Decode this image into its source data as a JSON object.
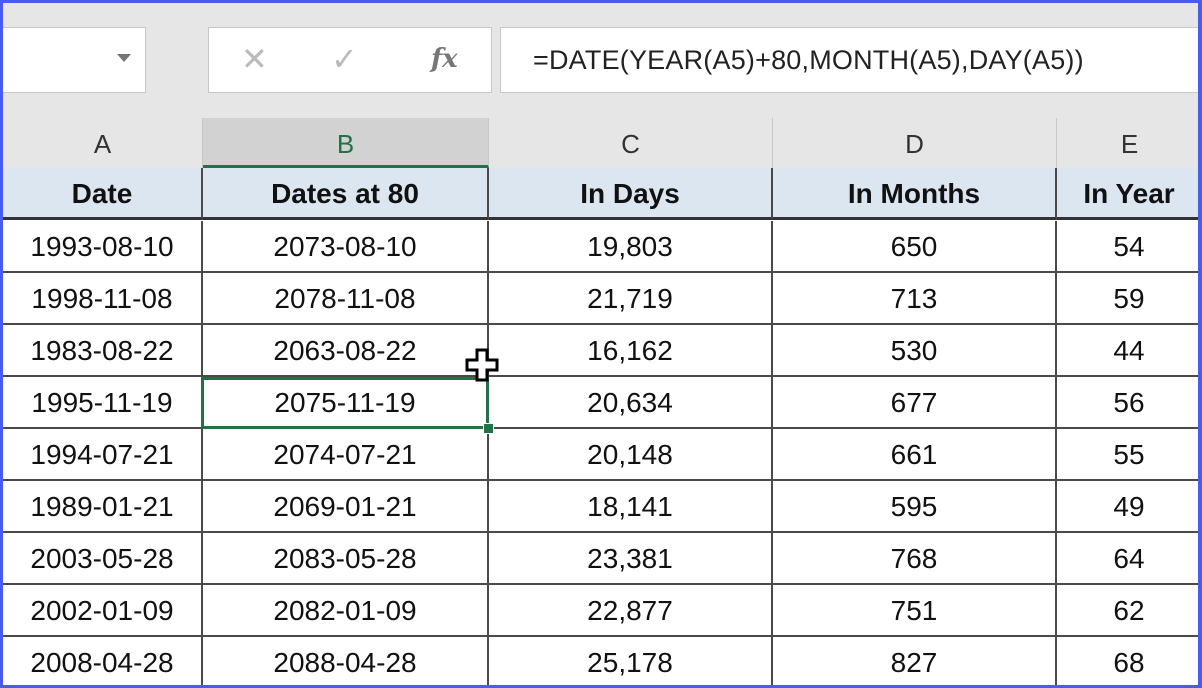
{
  "formula_bar": {
    "name_box": "",
    "cancel_icon": "✕",
    "enter_icon": "✓",
    "fx_label": "fx",
    "formula": "=DATE(YEAR(A5)+80,MONTH(A5),DAY(A5))"
  },
  "columns": [
    "A",
    "B",
    "C",
    "D",
    "E"
  ],
  "selected_column": "B",
  "headers": [
    "Date",
    "Dates at 80",
    "In Days",
    "In Months",
    "In Year"
  ],
  "rows": [
    [
      "1993-08-10",
      "2073-08-10",
      "19,803",
      "650",
      "54"
    ],
    [
      "1998-11-08",
      "2078-11-08",
      "21,719",
      "713",
      "59"
    ],
    [
      "1983-08-22",
      "2063-08-22",
      "16,162",
      "530",
      "44"
    ],
    [
      "1995-11-19",
      "2075-11-19",
      "20,634",
      "677",
      "56"
    ],
    [
      "1994-07-21",
      "2074-07-21",
      "20,148",
      "661",
      "55"
    ],
    [
      "1989-01-21",
      "2069-01-21",
      "18,141",
      "595",
      "49"
    ],
    [
      "2003-05-28",
      "2083-05-28",
      "23,381",
      "768",
      "64"
    ],
    [
      "2002-01-09",
      "2082-01-09",
      "22,877",
      "751",
      "62"
    ],
    [
      "2008-04-28",
      "2088-04-28",
      "25,178",
      "827",
      "68"
    ]
  ],
  "colors": {
    "frame": "#4a5cf0",
    "selection": "#217346",
    "header_fill": "#dce6f1"
  }
}
